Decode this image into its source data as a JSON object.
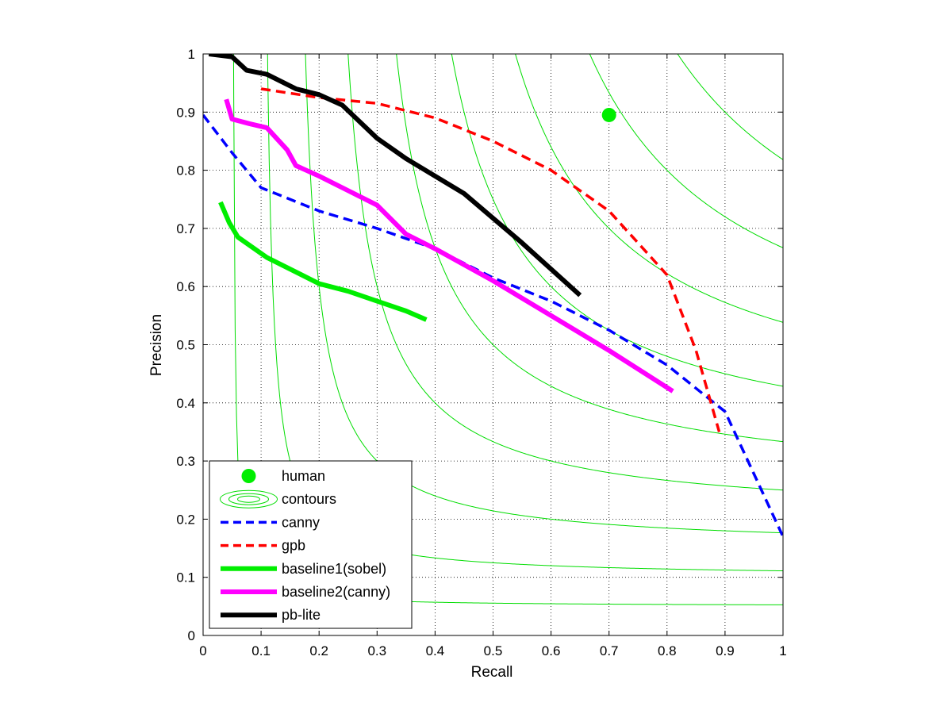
{
  "chart_data": {
    "type": "line",
    "xlabel": "Recall",
    "ylabel": "Precision",
    "xlim": [
      0,
      1
    ],
    "ylim": [
      0,
      1
    ],
    "x_ticks": [
      "0",
      "0.1",
      "0.2",
      "0.3",
      "0.4",
      "0.5",
      "0.6",
      "0.7",
      "0.8",
      "0.9",
      "1"
    ],
    "y_ticks": [
      "0",
      "0.1",
      "0.2",
      "0.3",
      "0.4",
      "0.5",
      "0.6",
      "0.7",
      "0.8",
      "0.9",
      "1"
    ],
    "grid": true,
    "legend_position": "bottom-left",
    "contours": {
      "label": "contours",
      "color": "#00dd00",
      "f_values": [
        0.1,
        0.2,
        0.3,
        0.4,
        0.5,
        0.6,
        0.7,
        0.8,
        0.9
      ]
    },
    "series": [
      {
        "name": "human",
        "style": "marker",
        "color": "#00ee00",
        "points": [
          [
            0.7,
            0.895
          ]
        ]
      },
      {
        "name": "canny",
        "style": "dashed",
        "color": "#0000ff",
        "points": [
          [
            0.0,
            0.895
          ],
          [
            0.05,
            0.83
          ],
          [
            0.1,
            0.77
          ],
          [
            0.2,
            0.73
          ],
          [
            0.3,
            0.7
          ],
          [
            0.4,
            0.665
          ],
          [
            0.5,
            0.615
          ],
          [
            0.6,
            0.575
          ],
          [
            0.7,
            0.525
          ],
          [
            0.8,
            0.465
          ],
          [
            0.9,
            0.385
          ],
          [
            1.0,
            0.17
          ]
        ]
      },
      {
        "name": "gpb",
        "style": "dashed",
        "color": "#ff0000",
        "points": [
          [
            0.1,
            0.94
          ],
          [
            0.2,
            0.925
          ],
          [
            0.3,
            0.915
          ],
          [
            0.4,
            0.89
          ],
          [
            0.5,
            0.85
          ],
          [
            0.6,
            0.8
          ],
          [
            0.7,
            0.73
          ],
          [
            0.8,
            0.62
          ],
          [
            0.85,
            0.49
          ],
          [
            0.89,
            0.35
          ]
        ]
      },
      {
        "name": "baseline1(sobel)",
        "style": "solid-thick",
        "color": "#00ee00",
        "points": [
          [
            0.03,
            0.745
          ],
          [
            0.045,
            0.71
          ],
          [
            0.06,
            0.685
          ],
          [
            0.11,
            0.65
          ],
          [
            0.15,
            0.63
          ],
          [
            0.2,
            0.605
          ],
          [
            0.25,
            0.592
          ],
          [
            0.3,
            0.575
          ],
          [
            0.35,
            0.558
          ],
          [
            0.385,
            0.543
          ]
        ]
      },
      {
        "name": "baseline2(canny)",
        "style": "solid-thick",
        "color": "#ff00ff",
        "points": [
          [
            0.04,
            0.922
          ],
          [
            0.05,
            0.888
          ],
          [
            0.08,
            0.88
          ],
          [
            0.11,
            0.873
          ],
          [
            0.145,
            0.835
          ],
          [
            0.16,
            0.808
          ],
          [
            0.2,
            0.79
          ],
          [
            0.25,
            0.765
          ],
          [
            0.3,
            0.74
          ],
          [
            0.35,
            0.69
          ],
          [
            0.4,
            0.665
          ],
          [
            0.5,
            0.61
          ],
          [
            0.6,
            0.55
          ],
          [
            0.7,
            0.49
          ],
          [
            0.81,
            0.42
          ]
        ]
      },
      {
        "name": "pb-lite",
        "style": "solid-thick",
        "color": "#000000",
        "points": [
          [
            0.01,
            1.0
          ],
          [
            0.05,
            0.995
          ],
          [
            0.075,
            0.972
          ],
          [
            0.11,
            0.965
          ],
          [
            0.16,
            0.94
          ],
          [
            0.2,
            0.93
          ],
          [
            0.24,
            0.912
          ],
          [
            0.3,
            0.855
          ],
          [
            0.35,
            0.82
          ],
          [
            0.45,
            0.76
          ],
          [
            0.55,
            0.675
          ],
          [
            0.65,
            0.585
          ]
        ]
      }
    ]
  }
}
